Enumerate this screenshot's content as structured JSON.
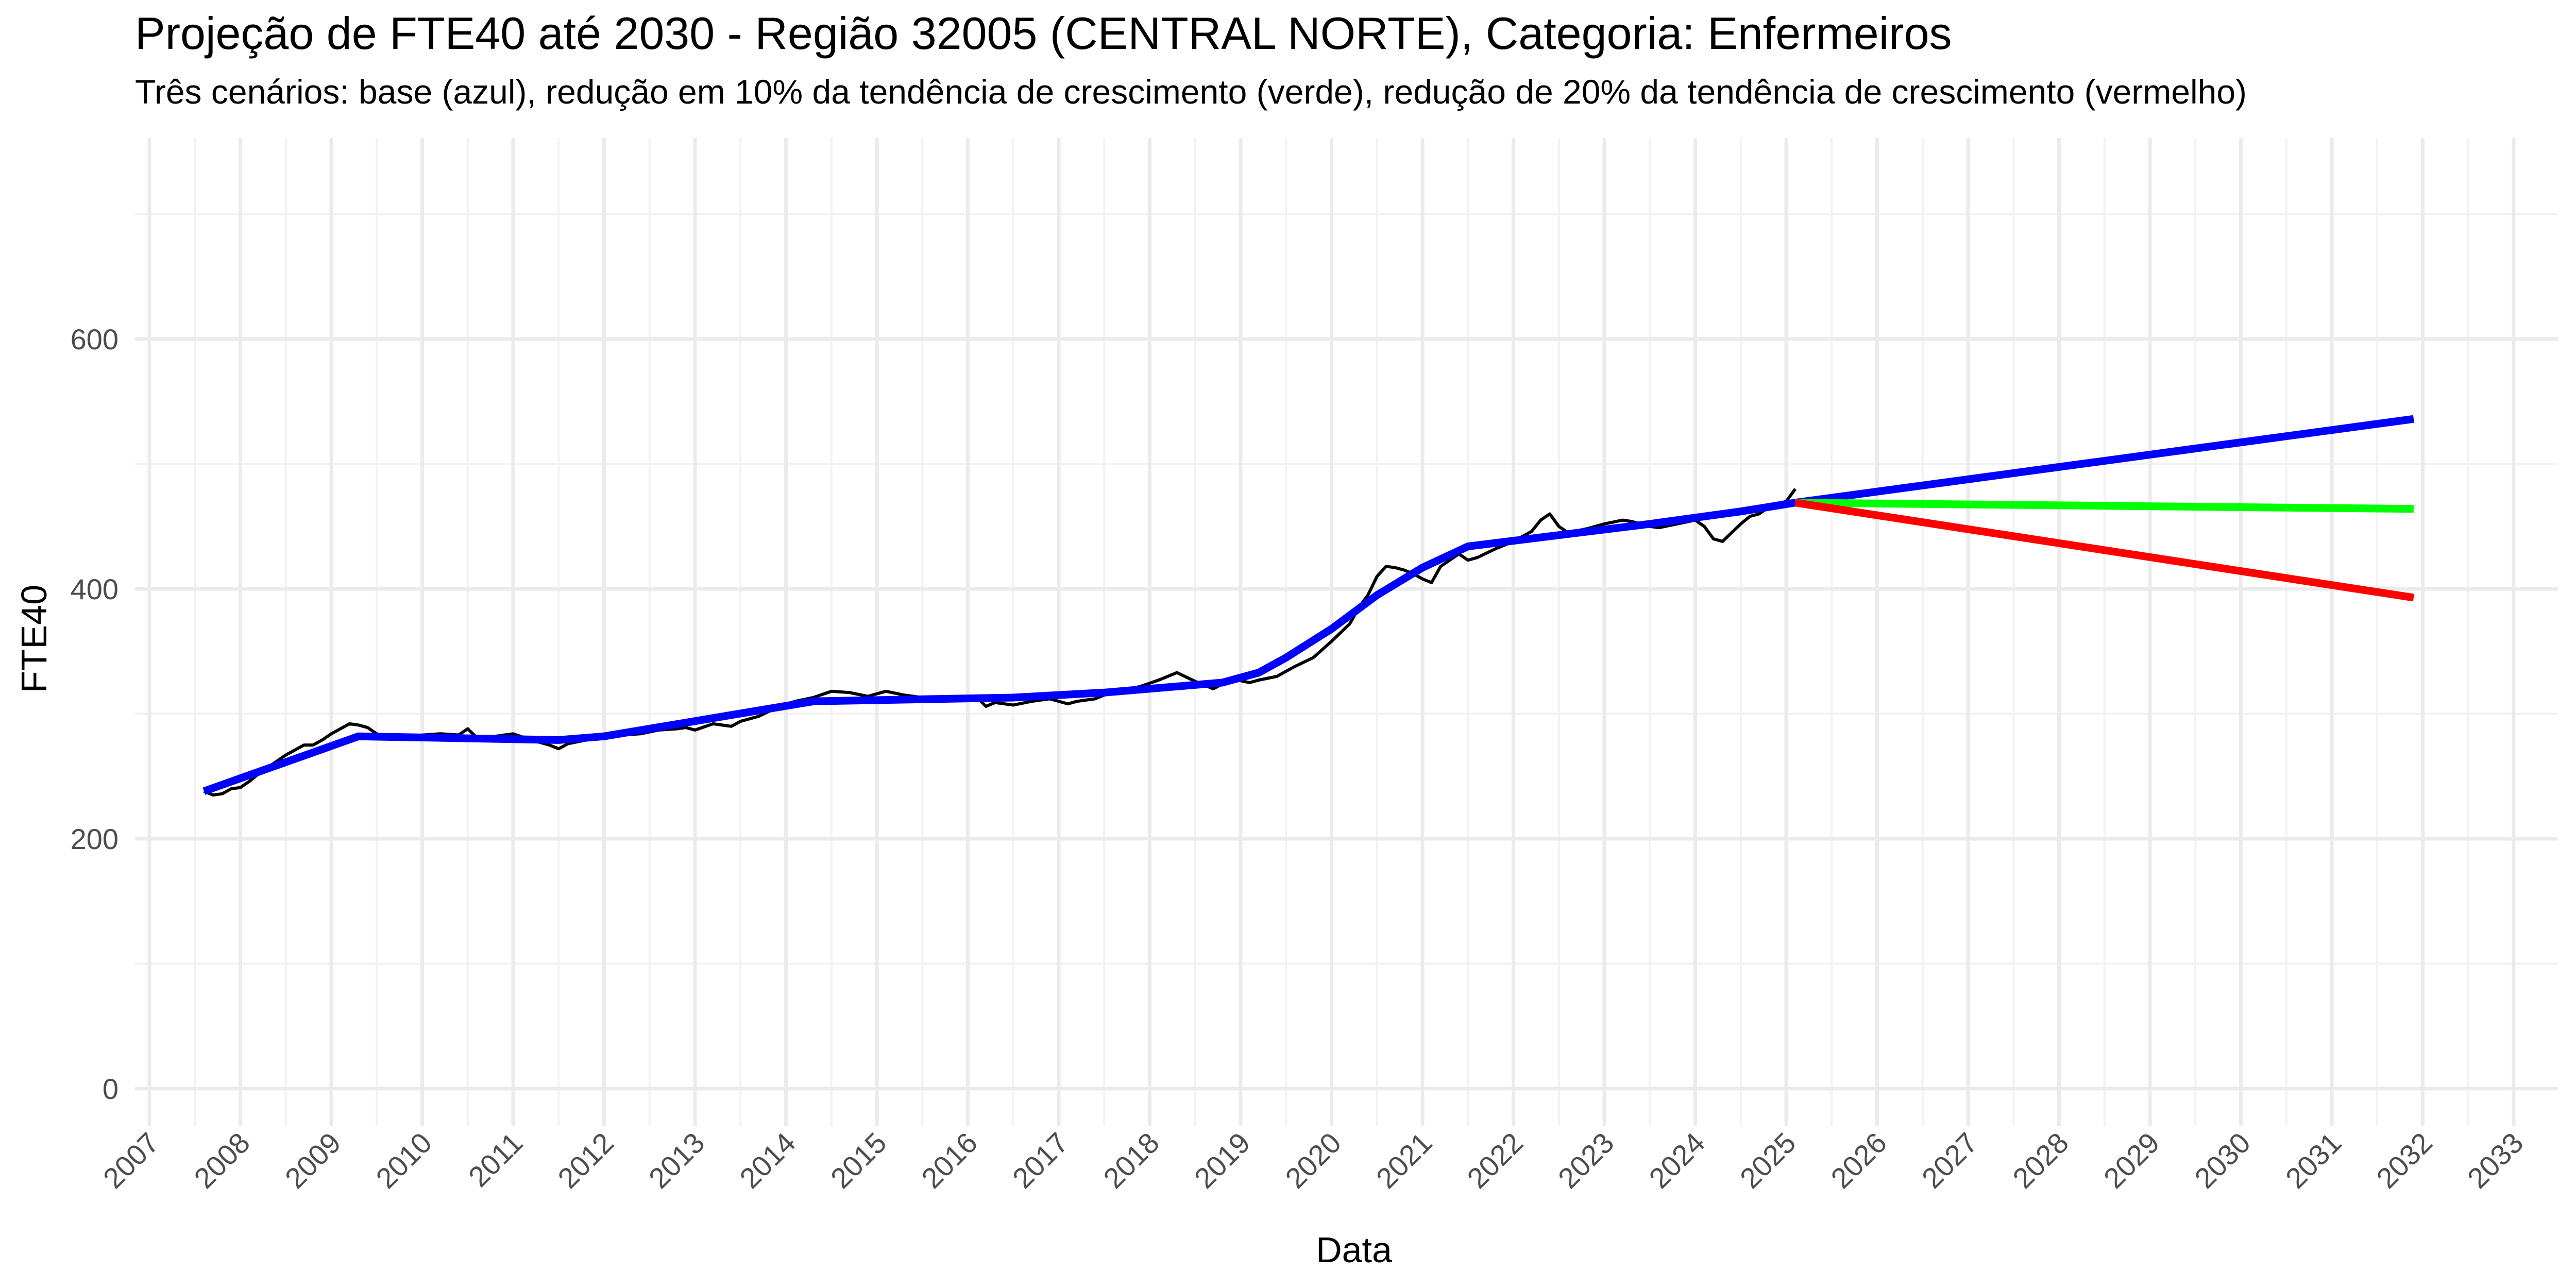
{
  "chart_data": {
    "type": "line",
    "title": "Projeção de FTE40 até 2030 - Região 32005 (CENTRAL NORTE), Categoria: Enfermeiros",
    "subtitle": "Três cenários: base (azul), redução em 10% da tendência de crescimento (verde), redução de 20% da tendência de crescimento (vermelho)",
    "xlabel": "Data",
    "ylabel": "FTE40",
    "xlim": [
      2007,
      2033
    ],
    "ylim": [
      0,
      700
    ],
    "x_ticks": [
      "2007",
      "2008",
      "2009",
      "2010",
      "2011",
      "2012",
      "2013",
      "2014",
      "2015",
      "2016",
      "2017",
      "2018",
      "2019",
      "2020",
      "2021",
      "2022",
      "2023",
      "2024",
      "2025",
      "2026",
      "2027",
      "2028",
      "2029",
      "2030",
      "2031",
      "2032",
      "2033"
    ],
    "y_ticks": [
      0,
      200,
      400,
      600
    ],
    "grid": true,
    "legend": "none",
    "series": [
      {
        "color": "#000000",
        "x": [
          2007.6,
          2007.7,
          2007.8,
          2007.9,
          2008.0,
          2008.1,
          2008.2,
          2008.3,
          2008.4,
          2008.5,
          2008.6,
          2008.7,
          2008.8,
          2008.9,
          2009.0,
          2009.1,
          2009.2,
          2009.3,
          2009.4,
          2009.5,
          2009.6,
          2009.7,
          2009.8,
          2009.9,
          2010.0,
          2010.2,
          2010.4,
          2010.5,
          2010.6,
          2010.8,
          2011.0,
          2011.2,
          2011.4,
          2011.5,
          2011.6,
          2011.8,
          2012.0,
          2012.2,
          2012.4,
          2012.6,
          2012.8,
          2012.9,
          2013.0,
          2013.2,
          2013.4,
          2013.5,
          2013.7,
          2013.9,
          2014.1,
          2014.3,
          2014.5,
          2014.7,
          2014.9,
          2015.1,
          2015.3,
          2015.5,
          2015.7,
          2015.9,
          2016.1,
          2016.2,
          2016.3,
          2016.5,
          2016.7,
          2016.9,
          2017.1,
          2017.2,
          2017.4,
          2017.5,
          2017.7,
          2017.9,
          2018.1,
          2018.2,
          2018.3,
          2018.5,
          2018.7,
          2018.9,
          2019.1,
          2019.2,
          2019.4,
          2019.6,
          2019.8,
          2020.0,
          2020.2,
          2020.3,
          2020.4,
          2020.5,
          2020.6,
          2020.7,
          2020.8,
          2020.9,
          2021.0,
          2021.1,
          2021.2,
          2021.4,
          2021.5,
          2021.6,
          2021.8,
          2022.0,
          2022.2,
          2022.3,
          2022.4,
          2022.5,
          2022.6,
          2022.8,
          2023.0,
          2023.2,
          2023.3,
          2023.4,
          2023.5,
          2023.6,
          2023.8,
          2024.0,
          2024.1,
          2024.2,
          2024.3,
          2024.4,
          2024.5,
          2024.6,
          2024.7,
          2024.8,
          2024.9,
          2025.0,
          2025.1
        ],
        "y": [
          238,
          235,
          236,
          240,
          241,
          246,
          252,
          257,
          262,
          267,
          271,
          275,
          275,
          279,
          284,
          288,
          292,
          291,
          289,
          284,
          282,
          281,
          280,
          281,
          283,
          284,
          283,
          288,
          281,
          282,
          284,
          279,
          275,
          272,
          276,
          279,
          282,
          283,
          284,
          287,
          288,
          289,
          287,
          292,
          290,
          294,
          298,
          305,
          310,
          313,
          318,
          317,
          314,
          318,
          315,
          313,
          312,
          314,
          313,
          306,
          309,
          307,
          310,
          312,
          308,
          310,
          312,
          315,
          318,
          322,
          327,
          330,
          333,
          326,
          320,
          328,
          325,
          327,
          330,
          338,
          345,
          358,
          372,
          385,
          395,
          410,
          418,
          417,
          415,
          412,
          408,
          405,
          418,
          428,
          423,
          425,
          432,
          438,
          446,
          455,
          460,
          450,
          445,
          448,
          452,
          455,
          454,
          452,
          450,
          449,
          452,
          455,
          450,
          440,
          438,
          445,
          452,
          458,
          460,
          465,
          468,
          470,
          480
        ]
      },
      {
        "color": "#0000ff",
        "x": [
          2007.6,
          2009.3,
          2011.5,
          2012.0,
          2014.3,
          2016.5,
          2017.5,
          2018.8,
          2019.2,
          2019.5,
          2020.0,
          2020.5,
          2021.0,
          2021.5,
          2022.5,
          2023.5,
          2024.5,
          2025.1,
          2031.9
        ],
        "y": [
          238,
          282,
          279,
          282,
          310,
          313,
          317,
          325,
          333,
          345,
          368,
          395,
          417,
          434,
          443,
          452,
          462,
          469,
          536
        ]
      },
      {
        "color": "#00ff00",
        "x": [
          2025.1,
          2031.9
        ],
        "y": [
          469,
          464
        ]
      },
      {
        "color": "#ff0000",
        "x": [
          2025.1,
          2031.9
        ],
        "y": [
          469,
          393
        ]
      }
    ]
  }
}
